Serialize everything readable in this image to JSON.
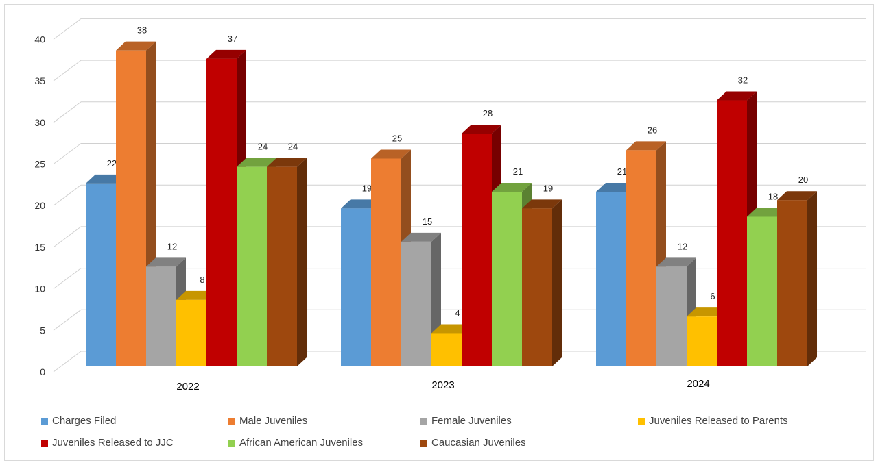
{
  "chart_data": {
    "type": "bar",
    "categories": [
      "2022",
      "2023",
      "2024"
    ],
    "series": [
      {
        "name": "Charges Filed",
        "values": [
          22,
          19,
          21
        ],
        "color": "#5b9bd5"
      },
      {
        "name": "Male Juveniles",
        "values": [
          38,
          25,
          26
        ],
        "color": "#ed7d31"
      },
      {
        "name": "Female Juveniles",
        "values": [
          12,
          15,
          12
        ],
        "color": "#a5a5a5"
      },
      {
        "name": "Juveniles Released to Parents",
        "values": [
          8,
          4,
          6
        ],
        "color": "#ffc000"
      },
      {
        "name": "Juveniles Released to JJC",
        "values": [
          37,
          28,
          32
        ],
        "color": "#c00000"
      },
      {
        "name": "African American Juveniles",
        "values": [
          24,
          21,
          18
        ],
        "color": "#92d050"
      },
      {
        "name": "Caucasian Juveniles",
        "values": [
          24,
          19,
          20
        ],
        "color": "#9e480e"
      }
    ],
    "ylim": [
      0,
      40
    ],
    "yticks": [
      0,
      5,
      10,
      15,
      20,
      25,
      30,
      35,
      40
    ],
    "grid": true,
    "legend": "bottom",
    "title": "",
    "xlabel": "",
    "ylabel": ""
  }
}
